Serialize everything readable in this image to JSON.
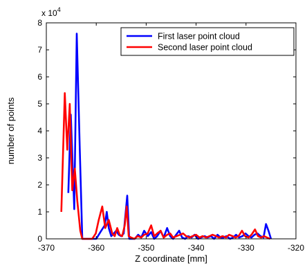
{
  "chart_data": {
    "type": "line",
    "title": "",
    "xlabel": "Z coordinate [mm]",
    "ylabel": "number of points",
    "y_multiplier_label": "x 10",
    "y_multiplier_exponent": "4",
    "xlim": [
      -370,
      -320
    ],
    "ylim": [
      0,
      80000
    ],
    "xticks": [
      -370,
      -360,
      -350,
      -340,
      -330,
      -320
    ],
    "yticks": [
      0,
      10000,
      20000,
      30000,
      40000,
      50000,
      60000,
      70000,
      80000
    ],
    "xtick_labels": [
      "-370",
      "-360",
      "-350",
      "-340",
      "-330",
      "-320"
    ],
    "ytick_labels": [
      "0",
      "1",
      "2",
      "3",
      "4",
      "5",
      "6",
      "7",
      "8"
    ],
    "grid": false,
    "legend_position": "top-right",
    "series": [
      {
        "name": "First laser point cloud",
        "color": "#0000ff",
        "x": [
          -365.6,
          -365.1,
          -364.4,
          -363.9,
          -363.3,
          -362.8,
          -362.0,
          -361.0,
          -360.0,
          -359.0,
          -358.3,
          -357.9,
          -357.5,
          -357.0,
          -356.5,
          -356.0,
          -355.5,
          -355.0,
          -354.5,
          -353.8,
          -353.4,
          -352.9,
          -352.3,
          -351.6,
          -351.0,
          -350.4,
          -349.7,
          -349.0,
          -348.4,
          -347.8,
          -347.1,
          -346.5,
          -345.8,
          -345.2,
          -344.6,
          -344.0,
          -343.4,
          -342.8,
          -342.2,
          -341.6,
          -340.9,
          -340.3,
          -339.6,
          -339.0,
          -338.3,
          -337.7,
          -337.0,
          -336.4,
          -335.7,
          -335.1,
          -334.5,
          -333.9,
          -333.2,
          -332.6,
          -332.0,
          -331.4,
          -330.7,
          -330.1,
          -329.5,
          -328.9,
          -328.3,
          -327.7,
          -327.1,
          -326.5,
          -326.0,
          -325.5,
          -325.0
        ],
        "y": [
          17000,
          46000,
          11000,
          76000,
          33000,
          0,
          0,
          0,
          0,
          3000,
          5000,
          10000,
          4000,
          1000,
          2000,
          3000,
          1500,
          1000,
          2000,
          16000,
          0,
          0,
          0,
          1500,
          500,
          3000,
          1000,
          2500,
          0,
          1000,
          3000,
          500,
          4000,
          1000,
          0,
          1500,
          3000,
          500,
          0,
          1000,
          500,
          1500,
          0,
          500,
          1000,
          500,
          1000,
          0,
          1500,
          500,
          500,
          1000,
          0,
          500,
          1500,
          500,
          1000,
          2000,
          1000,
          500,
          1500,
          2000,
          1000,
          500,
          5500,
          3000,
          0
        ]
      },
      {
        "name": "Second laser point cloud",
        "color": "#ff0000",
        "x": [
          -367.0,
          -366.3,
          -365.8,
          -365.3,
          -364.8,
          -364.3,
          -363.8,
          -363.2,
          -362.8,
          -362.2,
          -361.5,
          -360.8,
          -360.1,
          -359.5,
          -358.8,
          -358.2,
          -357.5,
          -356.8,
          -356.3,
          -355.8,
          -355.3,
          -354.8,
          -354.3,
          -353.9,
          -353.5,
          -353.0,
          -352.4,
          -351.7,
          -351.0,
          -350.4,
          -349.7,
          -349.0,
          -348.4,
          -347.8,
          -347.1,
          -346.5,
          -345.8,
          -345.2,
          -344.6,
          -343.9,
          -343.2,
          -342.6,
          -342.0,
          -341.3,
          -340.7,
          -340.0,
          -339.3,
          -338.7,
          -338.0,
          -337.3,
          -336.7,
          -336.0,
          -335.4,
          -334.7,
          -334.0,
          -333.4,
          -332.7,
          -332.1,
          -331.5,
          -330.8,
          -330.2,
          -329.5,
          -328.9,
          -328.2,
          -327.6,
          -327.0,
          -326.4,
          -325.8,
          -325.2
        ],
        "y": [
          10000,
          54000,
          33000,
          50000,
          18000,
          26000,
          14000,
          3000,
          0,
          0,
          0,
          0,
          2000,
          7000,
          12000,
          4000,
          7000,
          2000,
          1000,
          4000,
          1500,
          1000,
          5000,
          12000,
          1000,
          500,
          0,
          1000,
          500,
          1500,
          2000,
          5000,
          1000,
          2000,
          3000,
          500,
          1500,
          2000,
          500,
          1000,
          1500,
          2000,
          1000,
          500,
          1000,
          1500,
          500,
          1000,
          500,
          1000,
          1500,
          1000,
          500,
          1000,
          500,
          1500,
          1000,
          500,
          1000,
          3000,
          1000,
          500,
          1500,
          3500,
          1000,
          500,
          1000,
          500,
          0
        ]
      }
    ]
  }
}
